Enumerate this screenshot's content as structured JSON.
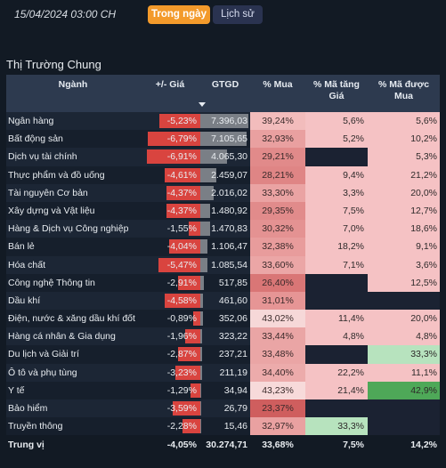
{
  "header": {
    "datetime": "15/04/2024 03:00 CH",
    "tab_today": "Trong ngày",
    "tab_history": "Lịch sử"
  },
  "section_title": "Thị Trường Chung",
  "columns": {
    "sector": "Ngành",
    "change": "+/- Giá",
    "value": "GTGD",
    "buy_pct": "% Mua",
    "up_pct_line1": "% Mã tăng",
    "up_pct_line2": "Giá",
    "bought_pct_line1": "% Mã được",
    "bought_pct_line2": "Mua"
  },
  "rows": [
    {
      "sector": "Ngân hàng",
      "change": "-5,23%",
      "chg_frac": 0.76,
      "value": "7.396,03",
      "val_frac": 1.0,
      "buy": "39,24%",
      "buy_color": "#f2bcbc",
      "up": "5,6%",
      "up_color": "#f5c2c4",
      "bought": "5,6%",
      "bought_color": "#f5c2c4"
    },
    {
      "sector": "Bất động sản",
      "change": "-6,79%",
      "chg_frac": 0.98,
      "value": "7.105,65",
      "val_frac": 0.96,
      "buy": "32,93%",
      "buy_color": "#e9a0a0",
      "up": "5,2%",
      "up_color": "#f5c2c4",
      "bought": "10,2%",
      "bought_color": "#f5c2c4"
    },
    {
      "sector": "Dịch vụ tài chính",
      "change": "-6,91%",
      "chg_frac": 1.0,
      "value": "4.065,30",
      "val_frac": 0.55,
      "buy": "29,21%",
      "buy_color": "#e18a8a",
      "up": "",
      "up_color": "#1b2232",
      "bought": "5,3%",
      "bought_color": "#f5c2c4"
    },
    {
      "sector": "Thực phẩm và đồ uống",
      "change": "-4,61%",
      "chg_frac": 0.67,
      "value": "2.459,07",
      "val_frac": 0.33,
      "buy": "28,21%",
      "buy_color": "#df8585",
      "up": "9,4%",
      "up_color": "#f5c2c4",
      "bought": "21,2%",
      "bought_color": "#f5c2c4"
    },
    {
      "sector": "Tài nguyên Cơ bản",
      "change": "-4,37%",
      "chg_frac": 0.63,
      "value": "2.016,02",
      "val_frac": 0.27,
      "buy": "33,30%",
      "buy_color": "#eaa3a3",
      "up": "3,3%",
      "up_color": "#f5c2c4",
      "bought": "20,0%",
      "bought_color": "#f5c2c4"
    },
    {
      "sector": "Xây dựng và Vật liệu",
      "change": "-4,37%",
      "chg_frac": 0.63,
      "value": "1.480,92",
      "val_frac": 0.2,
      "buy": "29,35%",
      "buy_color": "#e18b8b",
      "up": "7,5%",
      "up_color": "#f5c2c4",
      "bought": "12,7%",
      "bought_color": "#f5c2c4"
    },
    {
      "sector": "Hàng & Dịch vụ Công nghiệp",
      "change": "-1,55%",
      "chg_frac": 0.22,
      "value": "1.470,83",
      "val_frac": 0.2,
      "buy": "30,32%",
      "buy_color": "#e49292",
      "up": "7,0%",
      "up_color": "#f5c2c4",
      "bought": "18,6%",
      "bought_color": "#f5c2c4"
    },
    {
      "sector": "Bán lẻ",
      "change": "-4,04%",
      "chg_frac": 0.58,
      "value": "1.106,47",
      "val_frac": 0.15,
      "buy": "32,38%",
      "buy_color": "#e89c9c",
      "up": "18,2%",
      "up_color": "#f5c2c4",
      "bought": "9,1%",
      "bought_color": "#f5c2c4"
    },
    {
      "sector": "Hóa chất",
      "change": "-5,47%",
      "chg_frac": 0.79,
      "value": "1.085,54",
      "val_frac": 0.15,
      "buy": "33,60%",
      "buy_color": "#eba6a6",
      "up": "7,1%",
      "up_color": "#f5c2c4",
      "bought": "3,6%",
      "bought_color": "#f5c2c4"
    },
    {
      "sector": "Công nghệ Thông tin",
      "change": "-2,91%",
      "chg_frac": 0.42,
      "value": "517,85",
      "val_frac": 0.07,
      "buy": "26,40%",
      "buy_color": "#d97676",
      "up": "",
      "up_color": "#1b2232",
      "bought": "12,5%",
      "bought_color": "#f5c2c4"
    },
    {
      "sector": "Dầu khí",
      "change": "-4,58%",
      "chg_frac": 0.66,
      "value": "461,60",
      "val_frac": 0.06,
      "buy": "31,01%",
      "buy_color": "#e69595",
      "up": "",
      "up_color": "#1b2232",
      "bought": "",
      "bought_color": "#1b2232"
    },
    {
      "sector": "Điện, nước & xăng dầu khí đốt",
      "change": "-0,89%",
      "chg_frac": 0.13,
      "value": "352,06",
      "val_frac": 0.05,
      "buy": "43,02%",
      "buy_color": "#f6d8d8",
      "up": "11,4%",
      "up_color": "#f5c2c4",
      "bought": "20,0%",
      "bought_color": "#f5c2c4"
    },
    {
      "sector": "Hàng cá nhân & Gia dụng",
      "change": "-1,96%",
      "chg_frac": 0.28,
      "value": "323,22",
      "val_frac": 0.04,
      "buy": "33,44%",
      "buy_color": "#eaa5a5",
      "up": "4,8%",
      "up_color": "#f5c2c4",
      "bought": "4,8%",
      "bought_color": "#f5c2c4"
    },
    {
      "sector": "Du lịch và Giải trí",
      "change": "-2,87%",
      "chg_frac": 0.42,
      "value": "237,21",
      "val_frac": 0.03,
      "buy": "33,48%",
      "buy_color": "#eaa5a5",
      "up": "",
      "up_color": "#1b2232",
      "bought": "33,3%",
      "bought_color": "#b7e3be"
    },
    {
      "sector": "Ô tô và phụ tùng",
      "change": "-3,23%",
      "chg_frac": 0.47,
      "value": "211,19",
      "val_frac": 0.03,
      "buy": "34,40%",
      "buy_color": "#ecabab",
      "up": "22,2%",
      "up_color": "#f5c2c4",
      "bought": "11,1%",
      "bought_color": "#f5c2c4"
    },
    {
      "sector": "Y tế",
      "change": "-1,29%",
      "chg_frac": 0.19,
      "value": "34,94",
      "val_frac": 0.005,
      "buy": "43,23%",
      "buy_color": "#f7dada",
      "up": "21,4%",
      "up_color": "#f5c2c4",
      "bought": "42,9%",
      "bought_color": "#4ea858"
    },
    {
      "sector": "Bảo hiểm",
      "change": "-3,59%",
      "chg_frac": 0.52,
      "value": "26,79",
      "val_frac": 0.004,
      "buy": "23,37%",
      "buy_color": "#cf5e5e",
      "up": "",
      "up_color": "#1b2232",
      "bought": "",
      "bought_color": "#1b2232"
    },
    {
      "sector": "Truyền thông",
      "change": "-2,28%",
      "chg_frac": 0.33,
      "value": "15,46",
      "val_frac": 0.002,
      "buy": "32,97%",
      "buy_color": "#e9a1a1",
      "up": "33,3%",
      "up_color": "#b7e3be",
      "bought": "",
      "bought_color": "#1b2232"
    }
  ],
  "footer": {
    "label": "Trung vị",
    "change": "-4,05%",
    "value": "30.274,71",
    "buy": "33,68%",
    "up": "7,5%",
    "bought": "14,2%"
  }
}
